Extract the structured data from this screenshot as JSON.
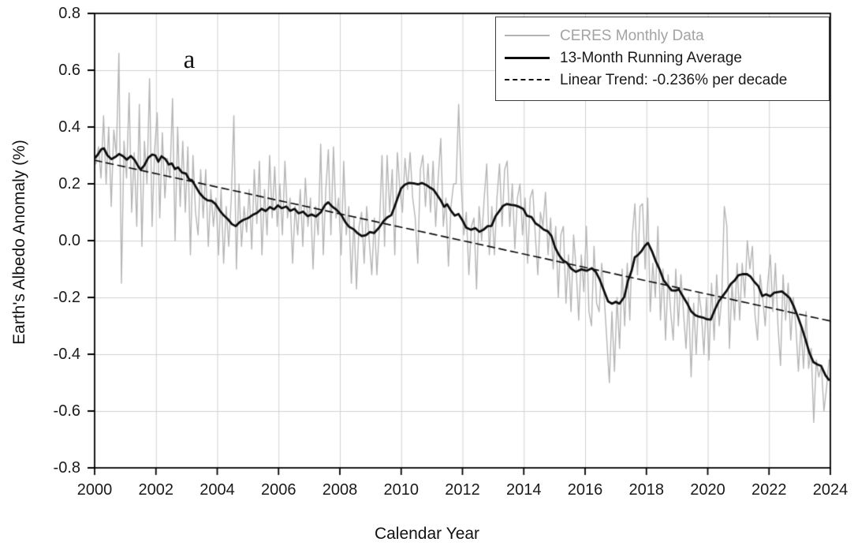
{
  "figure": {
    "panel_label": "a",
    "background": "#ffffff"
  },
  "axes": {
    "x_tick_labels": [
      "2000",
      "2002",
      "2004",
      "2006",
      "2008",
      "2010",
      "2012",
      "2014",
      "2016",
      "2018",
      "2020",
      "2022",
      "2024"
    ],
    "y_tick_labels": [
      "0.8",
      "0.6",
      "0.4",
      "0.2",
      "0.0",
      "-0.2",
      "-0.4",
      "-0.6",
      "-0.8"
    ]
  },
  "colors": {
    "grid": "#d2d2d2",
    "axis": "#000000",
    "monthly_line": "#b5b5b5",
    "average_line": "#0d0d0d",
    "trend_line": "#0d0d0d",
    "tick_text": "#1a1a1a"
  },
  "chart_data": {
    "type": "line",
    "title": "",
    "xlabel": "Calendar Year",
    "ylabel": "Earth's Albedo Anomaly (%)",
    "xlim": [
      2000,
      2024
    ],
    "ylim": [
      -0.8,
      0.8
    ],
    "x_ticks": [
      2000,
      2002,
      2004,
      2006,
      2008,
      2010,
      2012,
      2014,
      2016,
      2018,
      2020,
      2022,
      2024
    ],
    "y_ticks": [
      0.8,
      0.6,
      0.4,
      0.2,
      0.0,
      -0.2,
      -0.4,
      -0.6,
      -0.8
    ],
    "grid": true,
    "legend_position": "top-right",
    "panel_label": "a",
    "series": [
      {
        "name": "CERES Monthly Data",
        "style": "solid",
        "color": "#b5b5b5",
        "width": 1.4,
        "x_start": 2000.0417,
        "x_step": 0.083333,
        "values": [
          0.27,
          0.33,
          0.22,
          0.44,
          0.2,
          0.4,
          0.12,
          0.39,
          0.3,
          0.66,
          -0.15,
          0.35,
          0.22,
          0.52,
          0.1,
          0.31,
          0.05,
          0.48,
          -0.02,
          0.35,
          0.2,
          0.57,
          0.05,
          0.32,
          0.45,
          0.08,
          0.38,
          0.15,
          0.29,
          0.22,
          0.5,
          0.0,
          0.4,
          0.12,
          0.35,
          0.1,
          0.33,
          -0.05,
          0.3,
          0.1,
          0.02,
          0.25,
          0.08,
          0.25,
          -0.02,
          0.18,
          0.05,
          0.15,
          -0.05,
          0.18,
          -0.08,
          0.12,
          -0.02,
          0.15,
          0.44,
          -0.1,
          0.2,
          -0.02,
          0.12,
          0.03,
          0.18,
          -0.03,
          0.25,
          0.06,
          0.28,
          -0.05,
          0.18,
          0.02,
          0.3,
          0.08,
          0.26,
          0.05,
          0.2,
          0.02,
          0.28,
          0.08,
          0.15,
          -0.08,
          0.12,
          0.02,
          0.18,
          -0.02,
          0.22,
          0.05,
          0.15,
          -0.1,
          0.12,
          0.02,
          0.34,
          -0.05,
          0.18,
          0.32,
          0.02,
          0.33,
          0.08,
          0.15,
          -0.05,
          0.28,
          0.02,
          0.12,
          -0.15,
          0.08,
          -0.17,
          0.05,
          0.1,
          -0.08,
          0.12,
          0.0,
          -0.12,
          0.08,
          -0.12,
          0.05,
          0.3,
          -0.02,
          0.3,
          0.1,
          0.25,
          -0.05,
          0.31,
          0.18,
          0.1,
          0.29,
          0.18,
          0.31,
          0.15,
          0.08,
          -0.08,
          0.25,
          0.3,
          0.12,
          0.27,
          0.1,
          0.28,
          0.05,
          0.22,
          0.36,
          0.05,
          0.15,
          -0.09,
          0.12,
          0.2,
          0.2,
          0.48,
          0.2,
          0.02,
          0.1,
          -0.12,
          0.05,
          0.08,
          -0.17,
          0.12,
          0.0,
          0.15,
          0.27,
          -0.05,
          0.12,
          -0.05,
          0.15,
          0.27,
          0.05,
          0.25,
          0.28,
          0.05,
          0.2,
          -0.03,
          0.15,
          0.2,
          0.02,
          0.15,
          -0.08,
          0.15,
          0.18,
          0.02,
          -0.12,
          0.1,
          0.05,
          0.17,
          -0.05,
          0.08,
          -0.1,
          0.05,
          -0.2,
          0.02,
          0.05,
          -0.22,
          -0.05,
          -0.25,
          0.02,
          -0.1,
          -0.28,
          -0.05,
          -0.18,
          0.05,
          -0.25,
          -0.3,
          -0.02,
          -0.22,
          -0.25,
          -0.08,
          -0.2,
          -0.35,
          -0.5,
          -0.25,
          -0.46,
          -0.2,
          -0.38,
          -0.1,
          -0.3,
          -0.08,
          -0.28,
          0.02,
          0.13,
          -0.12,
          0.12,
          0.13,
          -0.1,
          0.15,
          -0.25,
          -0.08,
          -0.2,
          0.05,
          -0.28,
          -0.1,
          -0.35,
          -0.12,
          -0.25,
          -0.35,
          -0.1,
          -0.3,
          -0.12,
          -0.25,
          -0.38,
          -0.2,
          -0.48,
          -0.22,
          -0.4,
          -0.18,
          -0.25,
          -0.4,
          -0.2,
          -0.42,
          -0.15,
          -0.35,
          -0.12,
          -0.3,
          -0.2,
          0.12,
          0.05,
          -0.38,
          -0.15,
          -0.28,
          -0.08,
          -0.28,
          -0.08,
          -0.2,
          0.0,
          -0.1,
          -0.02,
          -0.26,
          -0.35,
          -0.12,
          -0.2,
          -0.3,
          -0.15,
          -0.05,
          -0.25,
          -0.08,
          -0.3,
          -0.44,
          -0.12,
          -0.28,
          -0.15,
          -0.35,
          -0.2,
          -0.3,
          -0.46,
          -0.3,
          -0.45,
          -0.25,
          -0.45,
          -0.38,
          -0.64,
          -0.42,
          -0.48,
          -0.44,
          -0.6,
          -0.52,
          -0.42
        ]
      },
      {
        "name": "13-Month Running Average",
        "style": "solid",
        "color": "#0d0d0d",
        "width": 2.8,
        "points": [
          [
            2000.0,
            0.29
          ],
          [
            2000.1,
            0.302
          ],
          [
            2000.22,
            0.322
          ],
          [
            2000.3,
            0.325
          ],
          [
            2000.42,
            0.3
          ],
          [
            2000.55,
            0.287
          ],
          [
            2000.68,
            0.295
          ],
          [
            2000.8,
            0.305
          ],
          [
            2000.92,
            0.298
          ],
          [
            2001.05,
            0.285
          ],
          [
            2001.18,
            0.298
          ],
          [
            2001.3,
            0.285
          ],
          [
            2001.42,
            0.262
          ],
          [
            2001.5,
            0.25
          ],
          [
            2001.62,
            0.265
          ],
          [
            2001.75,
            0.292
          ],
          [
            2001.88,
            0.303
          ],
          [
            2001.98,
            0.3
          ],
          [
            2002.08,
            0.278
          ],
          [
            2002.18,
            0.297
          ],
          [
            2002.3,
            0.288
          ],
          [
            2002.42,
            0.268
          ],
          [
            2002.52,
            0.272
          ],
          [
            2002.62,
            0.252
          ],
          [
            2002.72,
            0.258
          ],
          [
            2002.85,
            0.24
          ],
          [
            2002.98,
            0.236
          ],
          [
            2003.08,
            0.216
          ],
          [
            2003.18,
            0.212
          ],
          [
            2003.3,
            0.19
          ],
          [
            2003.42,
            0.168
          ],
          [
            2003.55,
            0.152
          ],
          [
            2003.68,
            0.142
          ],
          [
            2003.82,
            0.14
          ],
          [
            2003.95,
            0.128
          ],
          [
            2004.08,
            0.106
          ],
          [
            2004.22,
            0.088
          ],
          [
            2004.35,
            0.075
          ],
          [
            2004.48,
            0.058
          ],
          [
            2004.6,
            0.051
          ],
          [
            2004.72,
            0.064
          ],
          [
            2004.85,
            0.073
          ],
          [
            2005.0,
            0.079
          ],
          [
            2005.15,
            0.09
          ],
          [
            2005.3,
            0.098
          ],
          [
            2005.45,
            0.112
          ],
          [
            2005.58,
            0.104
          ],
          [
            2005.72,
            0.118
          ],
          [
            2005.85,
            0.11
          ],
          [
            2005.98,
            0.124
          ],
          [
            2006.1,
            0.114
          ],
          [
            2006.25,
            0.12
          ],
          [
            2006.38,
            0.105
          ],
          [
            2006.52,
            0.112
          ],
          [
            2006.65,
            0.096
          ],
          [
            2006.8,
            0.102
          ],
          [
            2006.95,
            0.086
          ],
          [
            2007.08,
            0.092
          ],
          [
            2007.22,
            0.085
          ],
          [
            2007.38,
            0.1
          ],
          [
            2007.52,
            0.126
          ],
          [
            2007.62,
            0.135
          ],
          [
            2007.75,
            0.12
          ],
          [
            2007.9,
            0.108
          ],
          [
            2008.05,
            0.09
          ],
          [
            2008.18,
            0.065
          ],
          [
            2008.3,
            0.049
          ],
          [
            2008.45,
            0.04
          ],
          [
            2008.58,
            0.026
          ],
          [
            2008.72,
            0.016
          ],
          [
            2008.85,
            0.019
          ],
          [
            2008.98,
            0.03
          ],
          [
            2009.12,
            0.027
          ],
          [
            2009.28,
            0.046
          ],
          [
            2009.42,
            0.068
          ],
          [
            2009.55,
            0.082
          ],
          [
            2009.68,
            0.09
          ],
          [
            2009.78,
            0.118
          ],
          [
            2009.9,
            0.155
          ],
          [
            2010.0,
            0.184
          ],
          [
            2010.12,
            0.197
          ],
          [
            2010.25,
            0.203
          ],
          [
            2010.4,
            0.202
          ],
          [
            2010.55,
            0.198
          ],
          [
            2010.68,
            0.203
          ],
          [
            2010.82,
            0.196
          ],
          [
            2010.95,
            0.186
          ],
          [
            2011.05,
            0.18
          ],
          [
            2011.18,
            0.16
          ],
          [
            2011.3,
            0.14
          ],
          [
            2011.4,
            0.119
          ],
          [
            2011.5,
            0.128
          ],
          [
            2011.62,
            0.106
          ],
          [
            2011.75,
            0.088
          ],
          [
            2011.87,
            0.094
          ],
          [
            2011.99,
            0.073
          ],
          [
            2012.12,
            0.046
          ],
          [
            2012.28,
            0.038
          ],
          [
            2012.42,
            0.044
          ],
          [
            2012.55,
            0.031
          ],
          [
            2012.68,
            0.038
          ],
          [
            2012.82,
            0.051
          ],
          [
            2012.95,
            0.052
          ],
          [
            2013.08,
            0.086
          ],
          [
            2013.2,
            0.104
          ],
          [
            2013.32,
            0.122
          ],
          [
            2013.45,
            0.129
          ],
          [
            2013.58,
            0.126
          ],
          [
            2013.72,
            0.124
          ],
          [
            2013.85,
            0.119
          ],
          [
            2013.98,
            0.112
          ],
          [
            2014.1,
            0.088
          ],
          [
            2014.25,
            0.083
          ],
          [
            2014.38,
            0.061
          ],
          [
            2014.52,
            0.051
          ],
          [
            2014.65,
            0.039
          ],
          [
            2014.78,
            0.033
          ],
          [
            2014.9,
            0.017
          ],
          [
            2015.02,
            -0.024
          ],
          [
            2015.15,
            -0.051
          ],
          [
            2015.28,
            -0.07
          ],
          [
            2015.4,
            -0.077
          ],
          [
            2015.55,
            -0.099
          ],
          [
            2015.7,
            -0.11
          ],
          [
            2015.88,
            -0.101
          ],
          [
            2016.05,
            -0.106
          ],
          [
            2016.22,
            -0.097
          ],
          [
            2016.35,
            -0.11
          ],
          [
            2016.48,
            -0.138
          ],
          [
            2016.62,
            -0.178
          ],
          [
            2016.75,
            -0.214
          ],
          [
            2016.88,
            -0.222
          ],
          [
            2017.0,
            -0.215
          ],
          [
            2017.12,
            -0.222
          ],
          [
            2017.28,
            -0.198
          ],
          [
            2017.4,
            -0.141
          ],
          [
            2017.52,
            -0.105
          ],
          [
            2017.62,
            -0.059
          ],
          [
            2017.72,
            -0.051
          ],
          [
            2017.84,
            -0.037
          ],
          [
            2017.95,
            -0.018
          ],
          [
            2018.05,
            -0.008
          ],
          [
            2018.18,
            -0.037
          ],
          [
            2018.3,
            -0.071
          ],
          [
            2018.44,
            -0.104
          ],
          [
            2018.56,
            -0.139
          ],
          [
            2018.7,
            -0.159
          ],
          [
            2018.82,
            -0.175
          ],
          [
            2018.95,
            -0.176
          ],
          [
            2019.06,
            -0.172
          ],
          [
            2019.2,
            -0.198
          ],
          [
            2019.34,
            -0.223
          ],
          [
            2019.46,
            -0.249
          ],
          [
            2019.6,
            -0.263
          ],
          [
            2019.72,
            -0.268
          ],
          [
            2019.85,
            -0.271
          ],
          [
            2019.98,
            -0.277
          ],
          [
            2020.1,
            -0.278
          ],
          [
            2020.24,
            -0.241
          ],
          [
            2020.36,
            -0.214
          ],
          [
            2020.49,
            -0.195
          ],
          [
            2020.62,
            -0.176
          ],
          [
            2020.75,
            -0.153
          ],
          [
            2020.88,
            -0.14
          ],
          [
            2021.0,
            -0.122
          ],
          [
            2021.14,
            -0.118
          ],
          [
            2021.28,
            -0.118
          ],
          [
            2021.4,
            -0.127
          ],
          [
            2021.52,
            -0.145
          ],
          [
            2021.65,
            -0.16
          ],
          [
            2021.78,
            -0.195
          ],
          [
            2021.9,
            -0.189
          ],
          [
            2022.04,
            -0.196
          ],
          [
            2022.16,
            -0.184
          ],
          [
            2022.3,
            -0.181
          ],
          [
            2022.42,
            -0.179
          ],
          [
            2022.55,
            -0.19
          ],
          [
            2022.68,
            -0.203
          ],
          [
            2022.8,
            -0.23
          ],
          [
            2022.94,
            -0.268
          ],
          [
            2023.06,
            -0.304
          ],
          [
            2023.18,
            -0.345
          ],
          [
            2023.32,
            -0.396
          ],
          [
            2023.45,
            -0.428
          ],
          [
            2023.58,
            -0.436
          ],
          [
            2023.7,
            -0.441
          ],
          [
            2023.84,
            -0.474
          ],
          [
            2023.95,
            -0.49
          ]
        ]
      },
      {
        "name": "Linear Trend: -0.236% per decade",
        "style": "dashed",
        "color": "#0d0d0d",
        "width": 1.7,
        "slope_per_decade": -0.236,
        "trend": {
          "x0": 2000,
          "y0": 0.283,
          "x1": 2024,
          "y1": -0.283
        }
      }
    ]
  }
}
